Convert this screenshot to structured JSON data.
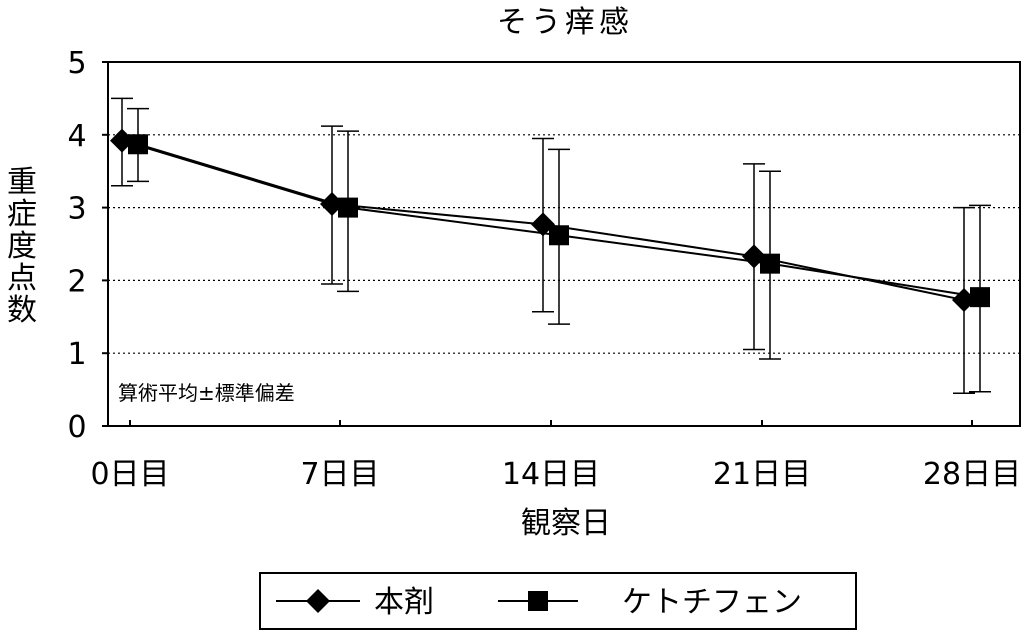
{
  "chart_data": {
    "type": "line",
    "title": "そう痒感",
    "xlabel": "観察日",
    "ylabel": "重症度点数",
    "ylim": [
      0,
      5
    ],
    "yticks": [
      0,
      1,
      2,
      3,
      4,
      5
    ],
    "categories": [
      "0日目",
      "7日目",
      "14日目",
      "21日目",
      "28日目"
    ],
    "annotation": "算術平均±標準偏差",
    "grid": "horizontal dotted",
    "legend_position": "bottom",
    "series": [
      {
        "name": "本剤",
        "marker": "diamond",
        "values": [
          3.92,
          3.05,
          2.77,
          2.33,
          1.73
        ],
        "error_low": [
          3.3,
          1.95,
          1.57,
          1.05,
          0.45
        ],
        "error_high": [
          4.5,
          4.12,
          3.95,
          3.6,
          3.0
        ]
      },
      {
        "name": "ケトチフェン",
        "marker": "square",
        "values": [
          3.87,
          3.0,
          2.62,
          2.23,
          1.77
        ],
        "error_low": [
          3.36,
          1.85,
          1.4,
          0.92,
          0.47
        ],
        "error_high": [
          4.36,
          4.05,
          3.8,
          3.5,
          3.03
        ]
      }
    ]
  }
}
